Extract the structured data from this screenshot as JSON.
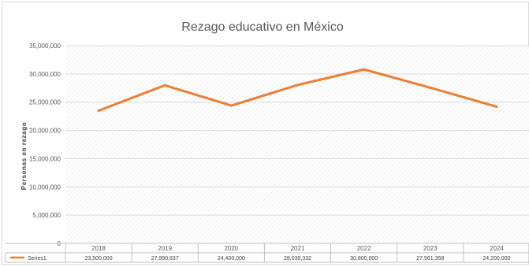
{
  "chart_data": {
    "type": "line",
    "title": "Rezago educativo en México",
    "xlabel": "",
    "ylabel": "Personas en rezago",
    "categories": [
      "2018",
      "2019",
      "2020",
      "2021",
      "2022",
      "2023",
      "2024"
    ],
    "series": [
      {
        "name": "Series1",
        "values": [
          23500000,
          27990837,
          24400000,
          28039332,
          30800000,
          27561358,
          24200000
        ],
        "labels": [
          "23,500,000",
          "27,990,837",
          "24,400,000",
          "28,039,332",
          "30,800,000",
          "27,561,358",
          "24,200,000"
        ],
        "color": "#ed7d31"
      }
    ],
    "ylim": [
      0,
      35000000
    ],
    "yticks": [
      "0",
      "5,000,000",
      "10,000,000",
      "15,000,000",
      "20,000,000",
      "25,000,000",
      "30,000,000",
      "35,000,000"
    ],
    "grid": true,
    "legend": "data-table-left",
    "plot_pattern": "light-diagonal-hatch"
  }
}
